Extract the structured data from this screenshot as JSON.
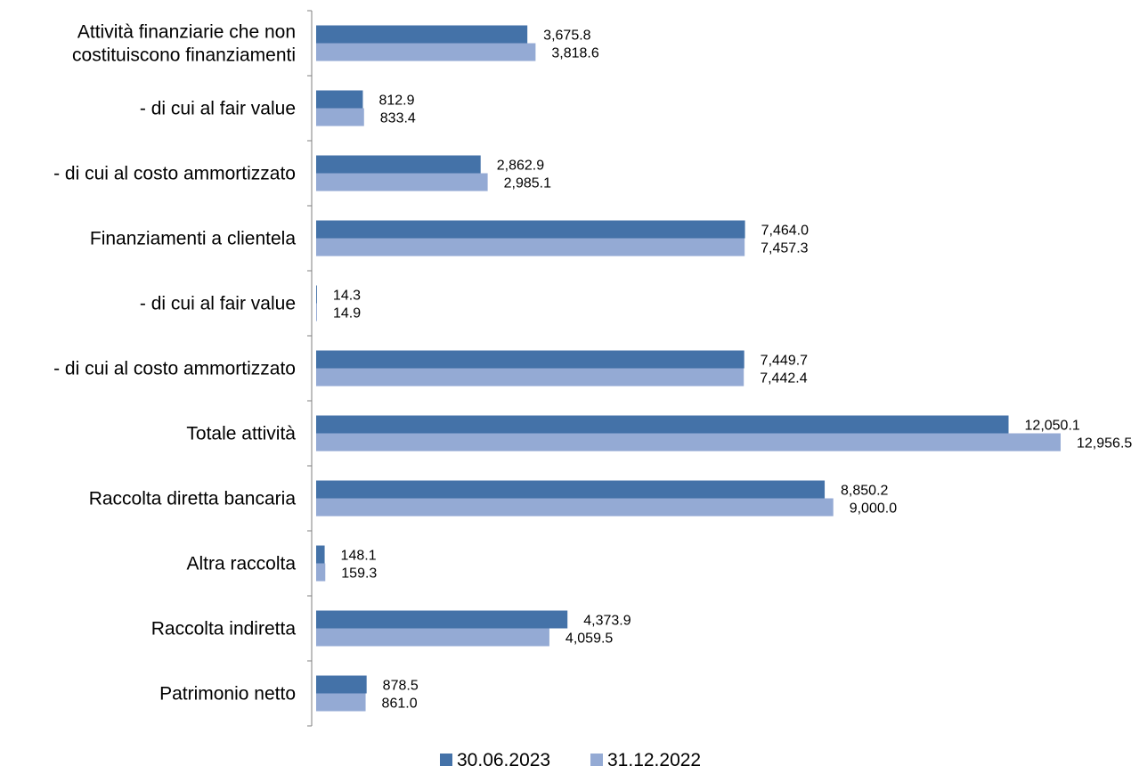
{
  "chart_data": {
    "type": "bar",
    "orientation": "horizontal",
    "categories": [
      [
        "Attività finanziarie che non",
        "costituiscono finanziamenti"
      ],
      [
        "- di cui al fair value"
      ],
      [
        "- di cui al costo ammortizzato"
      ],
      [
        "Finanziamenti a clientela"
      ],
      [
        "- di cui al fair value"
      ],
      [
        "- di cui al costo ammortizzato"
      ],
      [
        "Totale attività"
      ],
      [
        "Raccolta diretta bancaria"
      ],
      [
        "Altra raccolta"
      ],
      [
        "Raccolta indiretta"
      ],
      [
        "Patrimonio netto"
      ]
    ],
    "series": [
      {
        "name": "30.06.2023",
        "color": "#4472A8",
        "values": [
          3675.8,
          812.9,
          2862.9,
          7464.0,
          14.3,
          7449.7,
          12050.1,
          8850.2,
          148.1,
          4373.9,
          878.5
        ],
        "labels": [
          "3,675.8",
          "812.9",
          "2,862.9",
          "7,464.0",
          "14.3",
          "7,449.7",
          "12,050.1",
          "8,850.2",
          "148.1",
          "4,373.9",
          "878.5"
        ]
      },
      {
        "name": "31.12.2022",
        "color": "#94AAD4",
        "values": [
          3818.6,
          833.4,
          2985.1,
          7457.3,
          14.9,
          7442.4,
          12956.5,
          9000.0,
          159.3,
          4059.5,
          861.0
        ],
        "labels": [
          "3,818.6",
          "833.4",
          "2,985.1",
          "7,457.3",
          "14.9",
          "7,442.4",
          "12,956.5",
          "9,000.0",
          "159.3",
          "4,059.5",
          "861.0"
        ]
      }
    ],
    "xlim": [
      0,
      12956.5
    ],
    "grid": false,
    "legend_position": "bottom",
    "title": "",
    "xlabel": "",
    "ylabel": ""
  }
}
